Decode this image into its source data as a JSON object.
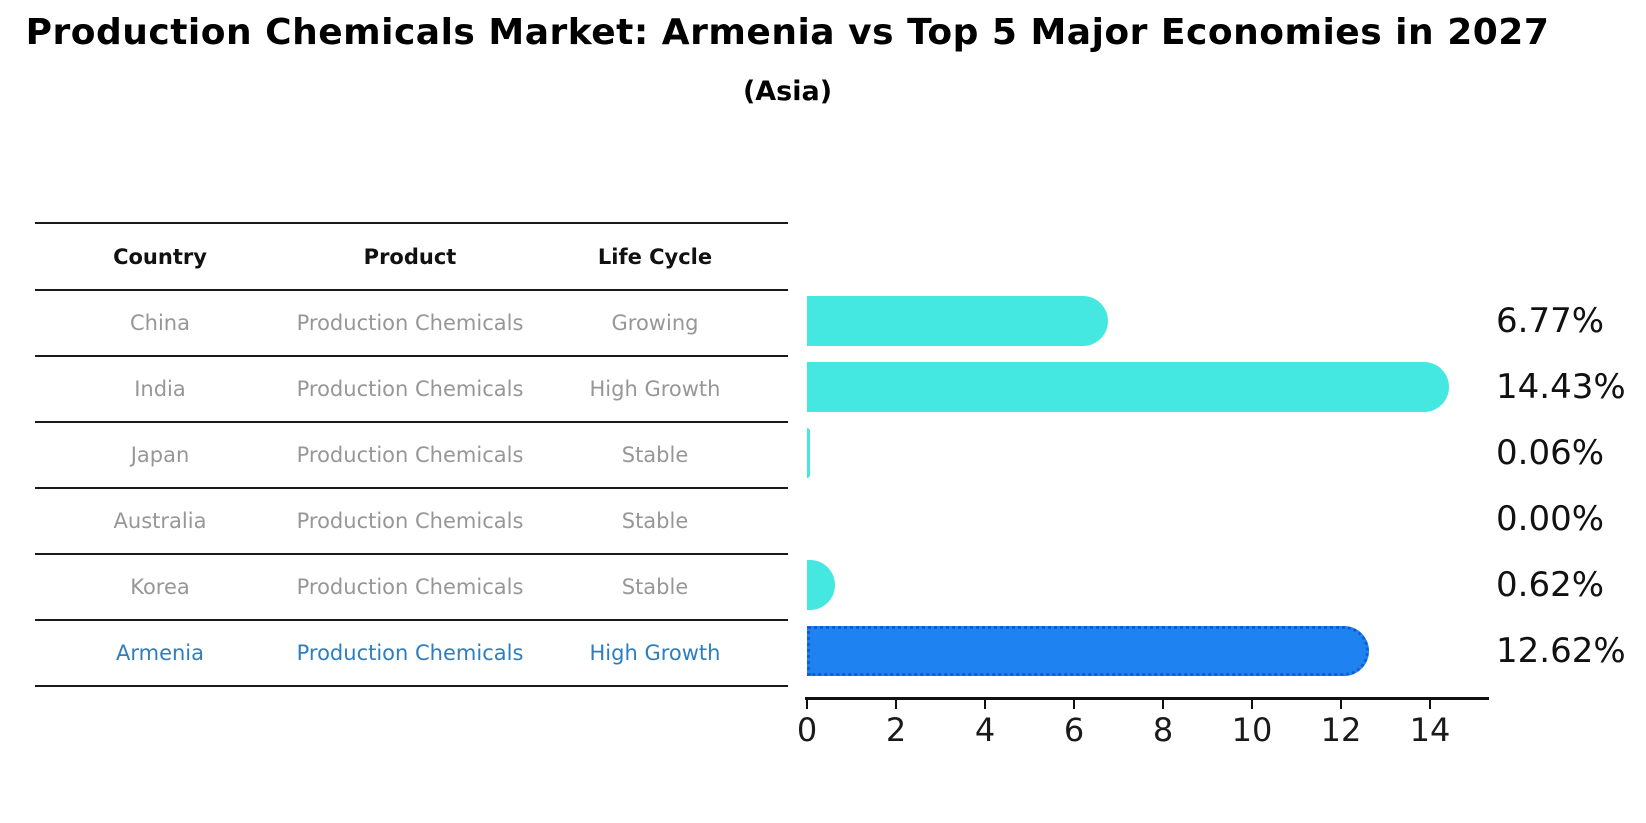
{
  "title": "Production Chemicals Market: Armenia vs Top 5 Major Economies in 2027",
  "subtitle": "(Asia)",
  "colors": {
    "bar": "#45e8e0",
    "highlight_bar": "#1e83f0",
    "highlight_border": "#0e5fd4",
    "row_text": "#979797",
    "highlight_text": "#2e7ebf",
    "header_text": "#111111",
    "line": "#1a1a1a"
  },
  "table": {
    "headers": [
      "Country",
      "Product",
      "Life Cycle"
    ],
    "rows": [
      {
        "country": "China",
        "product": "Production Chemicals",
        "life_cycle": "Growing",
        "highlight": false
      },
      {
        "country": "India",
        "product": "Production Chemicals",
        "life_cycle": "High Growth",
        "highlight": false
      },
      {
        "country": "Japan",
        "product": "Production Chemicals",
        "life_cycle": "Stable",
        "highlight": false
      },
      {
        "country": "Australia",
        "product": "Production Chemicals",
        "life_cycle": "Stable",
        "highlight": false
      },
      {
        "country": "Korea",
        "product": "Production Chemicals",
        "life_cycle": "Stable",
        "highlight": false
      },
      {
        "country": "Armenia",
        "product": "Production Chemicals",
        "life_cycle": "High Growth",
        "highlight": true
      }
    ]
  },
  "chart_data": {
    "type": "bar",
    "orientation": "horizontal",
    "title": "Production Chemicals Market: Armenia vs Top 5 Major Economies in 2027",
    "subtitle": "(Asia)",
    "categories": [
      "China",
      "India",
      "Japan",
      "Australia",
      "Korea",
      "Armenia"
    ],
    "values": [
      6.77,
      14.43,
      0.06,
      0.0,
      0.62,
      12.62
    ],
    "value_labels": [
      "6.77%",
      "14.43%",
      "0.06%",
      "0.00%",
      "0.62%",
      "12.62%"
    ],
    "xticks": [
      0,
      2,
      4,
      6,
      8,
      10,
      12,
      14
    ],
    "xlim": [
      0,
      15.3
    ],
    "grid": false,
    "legend": false,
    "highlight_index": 5,
    "highlight_category": "Armenia"
  }
}
